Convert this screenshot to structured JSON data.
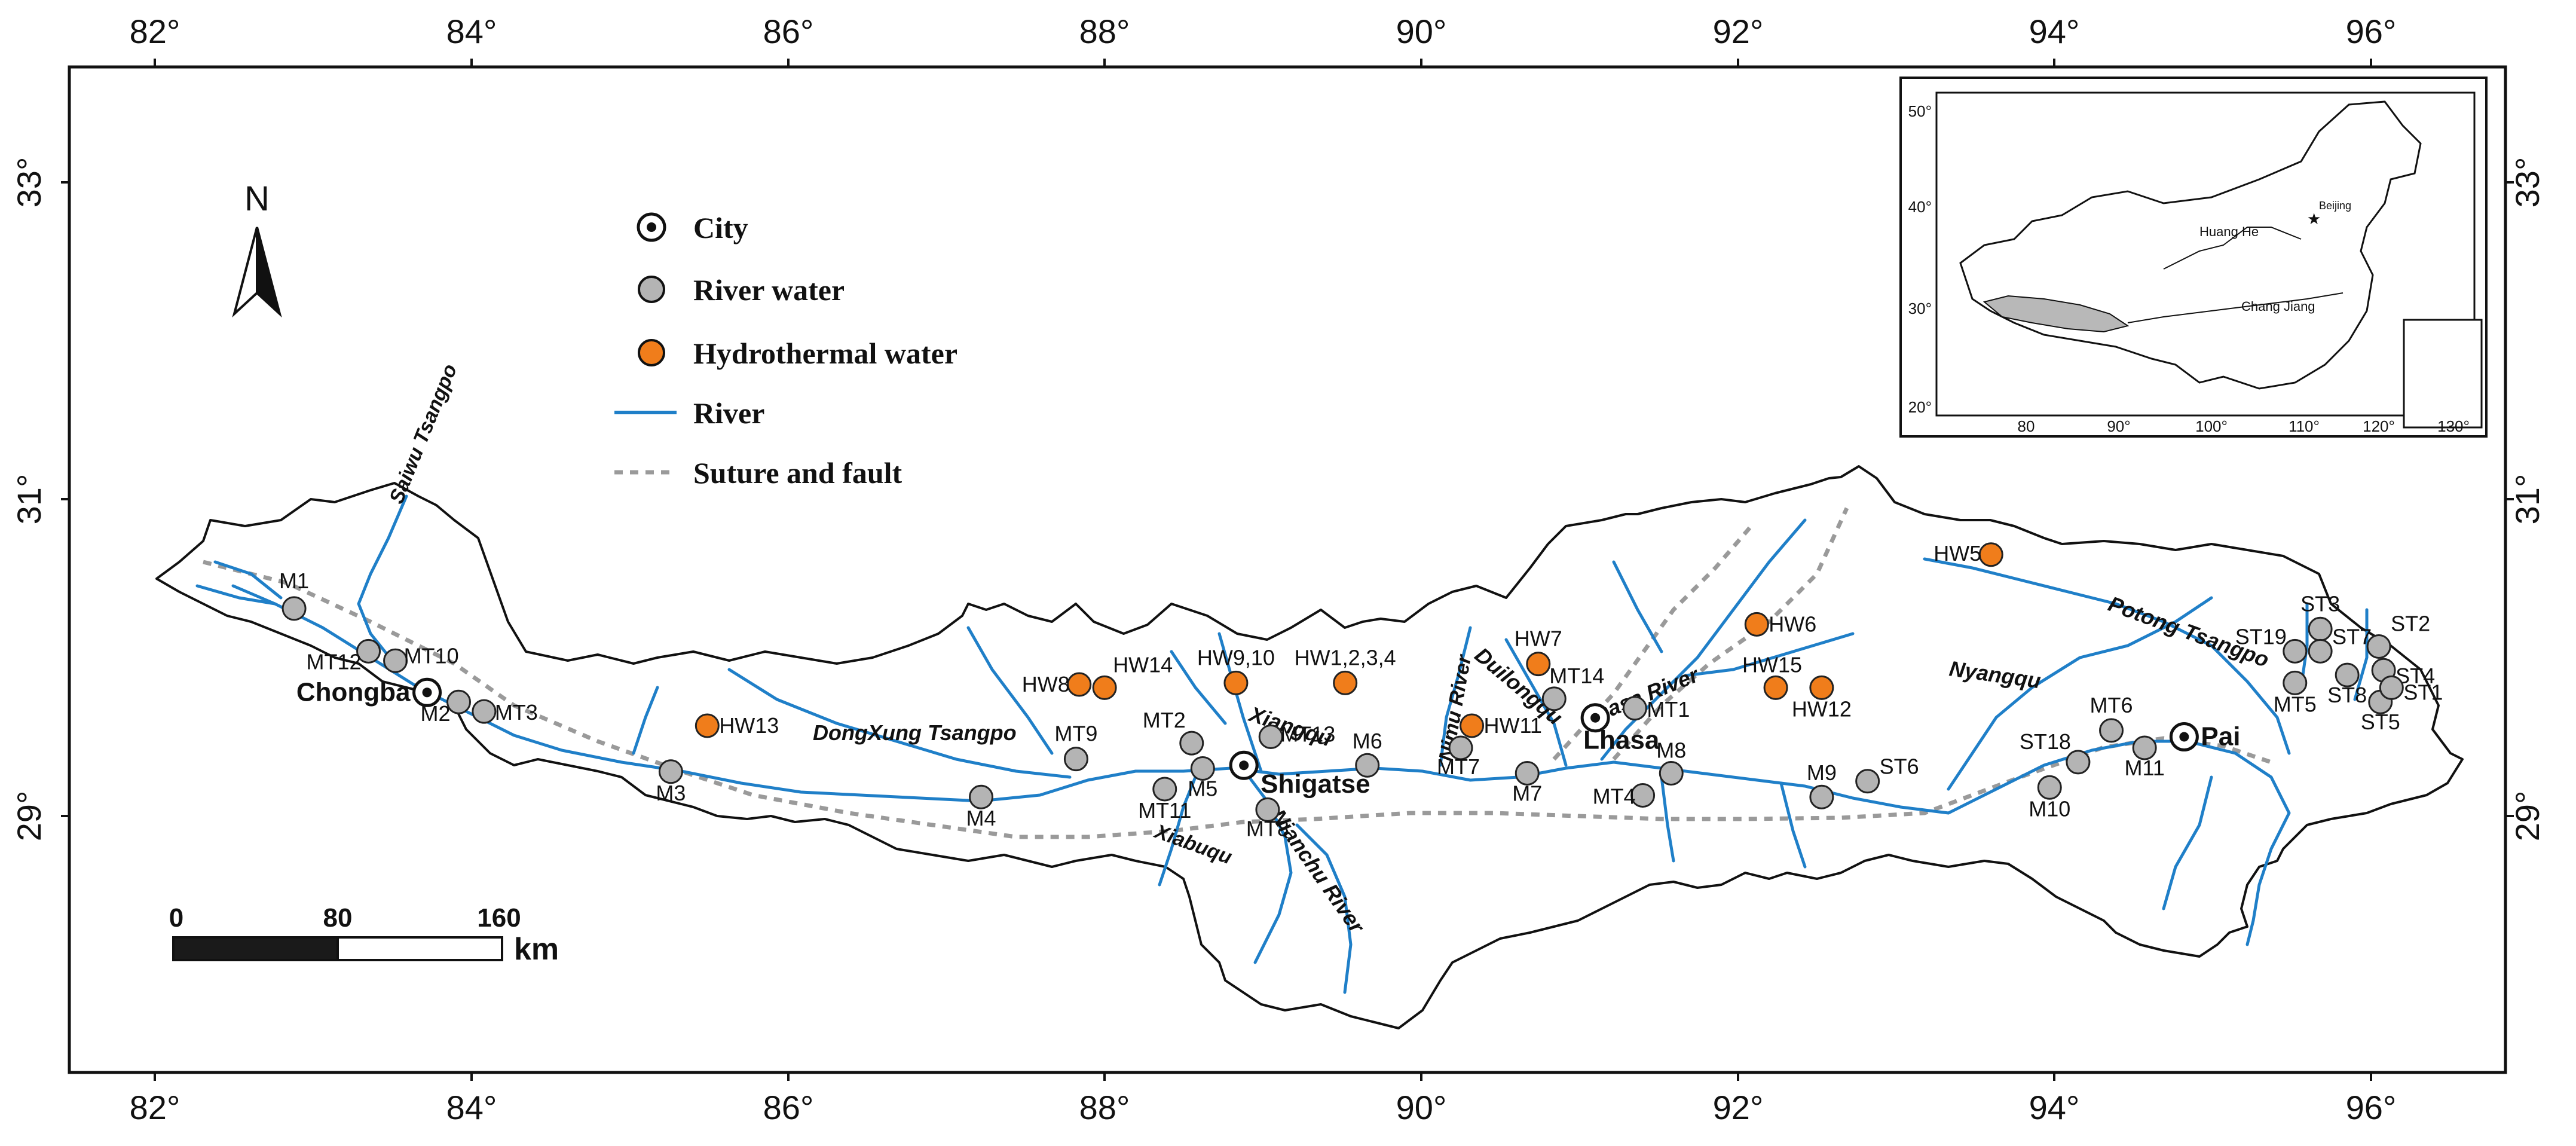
{
  "axes": {
    "x_ticks": [
      "82°",
      "84°",
      "86°",
      "88°",
      "90°",
      "92°",
      "94°",
      "96°"
    ],
    "y_ticks": [
      "33°",
      "31°",
      "29°"
    ]
  },
  "north": "N",
  "legend": {
    "city": "City",
    "river_water": "River water",
    "hydro_water": "Hydrothermal water",
    "river": "River",
    "fault": "Suture and fault"
  },
  "scale": {
    "labels": [
      "0",
      "80",
      "160"
    ],
    "unit": "km"
  },
  "cities": [
    {
      "name": "Chongba",
      "lon": 83.72,
      "lat": 29.78
    },
    {
      "name": "Shigatse",
      "lon": 88.88,
      "lat": 29.32
    },
    {
      "name": "Lhasa",
      "lon": 91.1,
      "lat": 29.62
    },
    {
      "name": "Pai",
      "lon": 94.82,
      "lat": 29.5
    }
  ],
  "river_sites": [
    {
      "name": "M1",
      "lon": 82.88,
      "lat": 30.31
    },
    {
      "name": "MT12",
      "lon": 83.35,
      "lat": 30.04
    },
    {
      "name": "MT10",
      "lon": 83.52,
      "lat": 29.98
    },
    {
      "name": "M2",
      "lon": 83.92,
      "lat": 29.72
    },
    {
      "name": "MT3",
      "lon": 84.08,
      "lat": 29.66
    },
    {
      "name": "M3",
      "lon": 85.26,
      "lat": 29.28
    },
    {
      "name": "M4",
      "lon": 87.22,
      "lat": 29.12
    },
    {
      "name": "MT9",
      "lon": 87.82,
      "lat": 29.36
    },
    {
      "name": "MT2",
      "lon": 88.55,
      "lat": 29.46
    },
    {
      "name": "M5",
      "lon": 88.62,
      "lat": 29.3
    },
    {
      "name": "MT11",
      "lon": 88.38,
      "lat": 29.17
    },
    {
      "name": "MT13",
      "lon": 89.05,
      "lat": 29.5
    },
    {
      "name": "MT8",
      "lon": 89.03,
      "lat": 29.04
    },
    {
      "name": "M6",
      "lon": 89.66,
      "lat": 29.32
    },
    {
      "name": "MT7",
      "lon": 90.25,
      "lat": 29.43
    },
    {
      "name": "M7",
      "lon": 90.67,
      "lat": 29.27
    },
    {
      "name": "MT14",
      "lon": 90.84,
      "lat": 29.74
    },
    {
      "name": "MT1",
      "lon": 91.35,
      "lat": 29.68
    },
    {
      "name": "M8",
      "lon": 91.58,
      "lat": 29.27
    },
    {
      "name": "MT4",
      "lon": 91.4,
      "lat": 29.13
    },
    {
      "name": "M9",
      "lon": 92.53,
      "lat": 29.12
    },
    {
      "name": "ST6",
      "lon": 92.82,
      "lat": 29.22
    },
    {
      "name": "M10",
      "lon": 93.97,
      "lat": 29.18
    },
    {
      "name": "ST18",
      "lon": 94.15,
      "lat": 29.34
    },
    {
      "name": "MT6",
      "lon": 94.36,
      "lat": 29.54
    },
    {
      "name": "M11",
      "lon": 94.57,
      "lat": 29.43
    },
    {
      "name": "ST3",
      "lon": 95.68,
      "lat": 30.18
    },
    {
      "name": "ST19",
      "lon": 95.52,
      "lat": 30.04
    },
    {
      "name": "ST7",
      "lon": 95.68,
      "lat": 30.04
    },
    {
      "name": "ST2",
      "lon": 96.05,
      "lat": 30.07
    },
    {
      "name": "ST4",
      "lon": 96.08,
      "lat": 29.92
    },
    {
      "name": "ST8",
      "lon": 95.85,
      "lat": 29.89
    },
    {
      "name": "MT5",
      "lon": 95.52,
      "lat": 29.84
    },
    {
      "name": "ST5",
      "lon": 96.06,
      "lat": 29.72
    },
    {
      "name": "ST1",
      "lon": 96.13,
      "lat": 29.81
    }
  ],
  "hydro_sites": [
    {
      "name": "HW5",
      "lon": 93.6,
      "lat": 30.65
    },
    {
      "name": "HW6",
      "lon": 92.12,
      "lat": 30.21
    },
    {
      "name": "HW7",
      "lon": 90.74,
      "lat": 29.96
    },
    {
      "name": "HW15",
      "lon": 92.24,
      "lat": 29.81
    },
    {
      "name": "HW12",
      "lon": 92.53,
      "lat": 29.81
    },
    {
      "name": "HW1,2,3,4",
      "lon": 89.52,
      "lat": 29.84
    },
    {
      "name": "HW9,10",
      "lon": 88.83,
      "lat": 29.84
    },
    {
      "name": "HW14",
      "lon": 88.0,
      "lat": 29.81
    },
    {
      "name": "HW8",
      "lon": 87.84,
      "lat": 29.83
    },
    {
      "name": "HW13",
      "lon": 85.49,
      "lat": 29.57
    },
    {
      "name": "HW11",
      "lon": 90.32,
      "lat": 29.57
    }
  ],
  "river_labels": {
    "saiwu": "Saiwu Tsangpo",
    "dongxung": "DongXung Tsangpo",
    "xiangqu": "Xiangqu",
    "xiabuqu": "Xiabuqu",
    "nianchu": "Nianchu River",
    "nimu": "Nimu River",
    "duilongqu": "Duilongqu",
    "lhasa": "Lhasa River",
    "nyangqu": "Nyangqu",
    "potong": "Potong Tsangpo"
  },
  "inset": {
    "x_ticks": [
      "80",
      "90°",
      "100°",
      "110°",
      "120°",
      "130°"
    ],
    "y_ticks": [
      "50°",
      "40°",
      "30°",
      "20°"
    ],
    "labels": [
      "Huang He",
      "Chang Jiang",
      "Beijing"
    ]
  },
  "colors": {
    "river": "#1f7fc8",
    "river_site": "#b4b4b4",
    "hydro_site": "#f07d1b",
    "city_marker": "#111111",
    "fault": "#9a9a9a",
    "inset_tibet": "#b8b8b8"
  }
}
